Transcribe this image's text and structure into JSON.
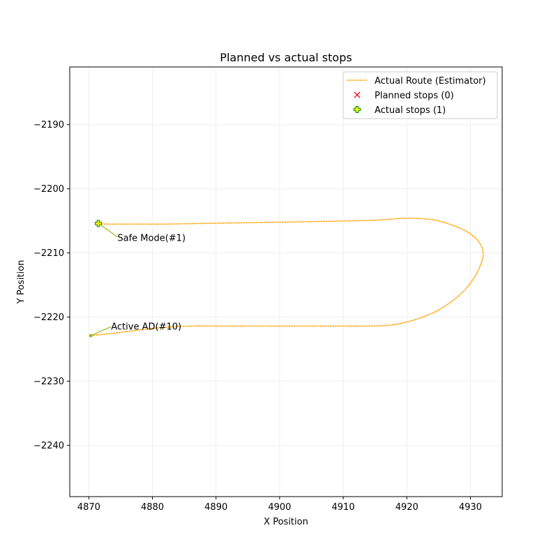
{
  "chart_data": {
    "type": "line",
    "title": "Planned vs actual stops",
    "xlabel": "X Position",
    "ylabel": "Y Position",
    "xlim": [
      4867,
      4935
    ],
    "ylim": [
      -2248,
      -2181
    ],
    "xticks": [
      4870,
      4880,
      4890,
      4900,
      4910,
      4920,
      4930
    ],
    "yticks": [
      -2240,
      -2230,
      -2220,
      -2210,
      -2200,
      -2190
    ],
    "grid": true,
    "legend_position": "top-right",
    "colors": {
      "route": "#ffa500",
      "planned": "#ff0000",
      "actual_fill": "#ffff00",
      "actual_edge": "#008000",
      "annotation_line": "#9aba1e"
    },
    "series": [
      {
        "name": "Actual Route (Estimator)",
        "kind": "line",
        "style": "dotted",
        "x": [
          4870.3,
          4874,
          4878,
          4882,
          4886,
          4890,
          4895,
          4900,
          4905,
          4910,
          4914,
          4917,
          4919,
          4921,
          4923,
          4925,
          4927,
          4929,
          4930.5,
          4931.5,
          4932,
          4931.8,
          4931,
          4929.5,
          4927.5,
          4925,
          4923,
          4921,
          4919.5,
          4918,
          4915,
          4911,
          4906,
          4900,
          4894,
          4888,
          4882,
          4877,
          4873,
          4871.5
        ],
        "y": [
          -2222.9,
          -2222.5,
          -2222.0,
          -2221.6,
          -2221.4,
          -2221.4,
          -2221.4,
          -2221.4,
          -2221.4,
          -2221.4,
          -2221.4,
          -2221.3,
          -2221.0,
          -2220.5,
          -2219.8,
          -2218.9,
          -2217.6,
          -2215.9,
          -2214.0,
          -2212.1,
          -2210.4,
          -2209.1,
          -2207.9,
          -2206.7,
          -2205.8,
          -2205.0,
          -2204.7,
          -2204.6,
          -2204.6,
          -2204.7,
          -2204.9,
          -2205.0,
          -2205.1,
          -2205.2,
          -2205.3,
          -2205.4,
          -2205.5,
          -2205.5,
          -2205.5,
          -2205.4
        ]
      },
      {
        "name": "Planned stops (0)",
        "kind": "marker",
        "marker": "x",
        "x": [],
        "y": []
      },
      {
        "name": "Actual stops (1)",
        "kind": "marker",
        "marker": "plus",
        "x": [
          4871.5
        ],
        "y": [
          -2205.4
        ]
      }
    ],
    "annotations": [
      {
        "text": "Safe Mode(#1)",
        "x": 4871.5,
        "y": -2205.4,
        "text_x": 4874.5,
        "text_y": -2207.5
      },
      {
        "text": "Active AD(#10)",
        "x": 4870.3,
        "y": -2222.9,
        "text_x": 4873.5,
        "text_y": -2221.5
      }
    ]
  }
}
